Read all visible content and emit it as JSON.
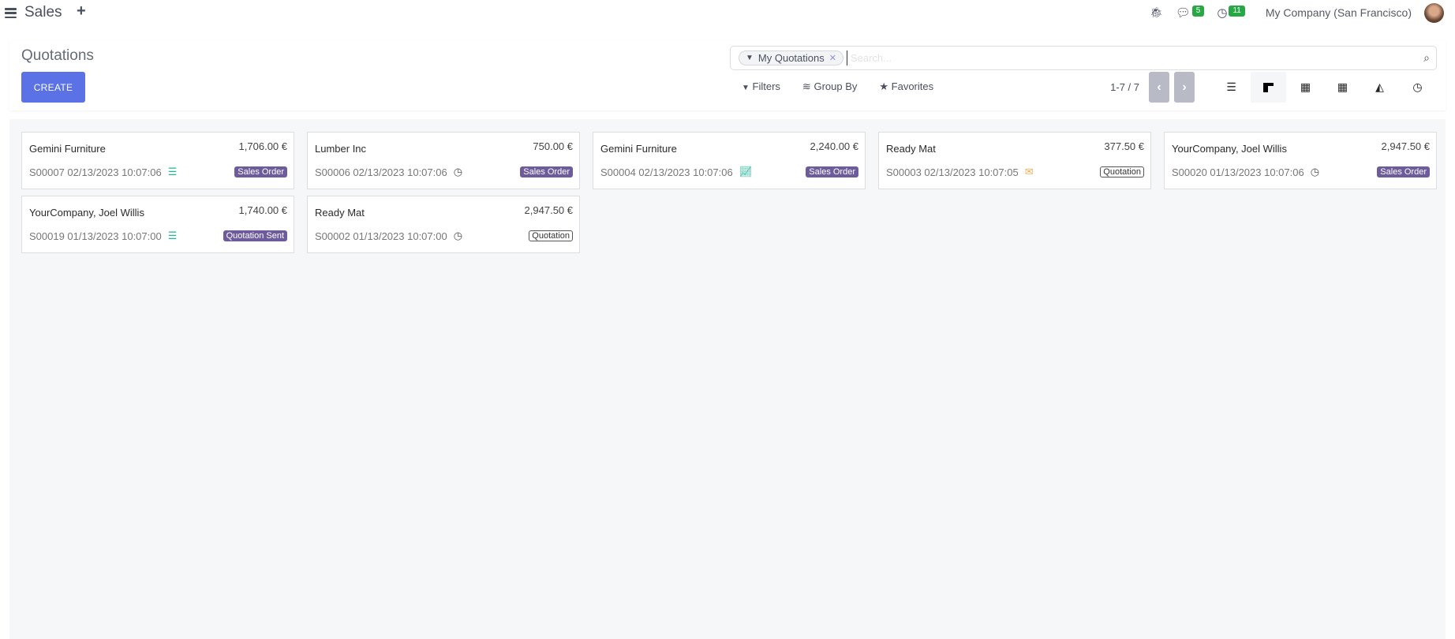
{
  "topbar": {
    "app_title": "Sales",
    "messages_count": "5",
    "activities_count": "11",
    "company": "My Company (San Francisco)"
  },
  "control_panel": {
    "title": "Quotations",
    "create_label": "CREATE",
    "search": {
      "facet": "My Quotations",
      "placeholder": "Search..."
    },
    "filters_label": "Filters",
    "group_by_label": "Group By",
    "favorites_label": "Favorites",
    "pager": "1-7 / 7",
    "views": [
      {
        "name": "list",
        "active": false
      },
      {
        "name": "kanban",
        "active": true
      },
      {
        "name": "calendar",
        "active": false
      },
      {
        "name": "pivot",
        "active": false
      },
      {
        "name": "graph",
        "active": false
      },
      {
        "name": "activity",
        "active": false
      }
    ]
  },
  "cards": [
    {
      "customer": "Gemini Furniture",
      "amount": "1,706.00 €",
      "ref": "S00007 02/13/2023 10:07:06",
      "activity": "list-icon",
      "status": "Sales Order",
      "status_style": "filled"
    },
    {
      "customer": "Lumber Inc",
      "amount": "750.00 €",
      "ref": "S00006 02/13/2023 10:07:06",
      "activity": "clock-icon",
      "status": "Sales Order",
      "status_style": "filled"
    },
    {
      "customer": "Gemini Furniture",
      "amount": "2,240.00 €",
      "ref": "S00004 02/13/2023 10:07:06",
      "activity": "chart-line-icon",
      "status": "Sales Order",
      "status_style": "filled"
    },
    {
      "customer": "Ready Mat",
      "amount": "377.50 €",
      "ref": "S00003 02/13/2023 10:07:05",
      "activity": "envelope-icon",
      "status": "Quotation",
      "status_style": "outline"
    },
    {
      "customer": "YourCompany, Joel Willis",
      "amount": "2,947.50 €",
      "ref": "S00020 01/13/2023 10:07:06",
      "activity": "clock-icon",
      "status": "Sales Order",
      "status_style": "filled"
    },
    {
      "customer": "YourCompany, Joel Willis",
      "amount": "1,740.00 €",
      "ref": "S00019 01/13/2023 10:07:00",
      "activity": "list-icon",
      "status": "Quotation Sent",
      "status_style": "filled"
    },
    {
      "customer": "Ready Mat",
      "amount": "2,947.50 €",
      "ref": "S00002 01/13/2023 10:07:00",
      "activity": "clock-icon",
      "status": "Quotation",
      "status_style": "outline"
    }
  ],
  "colors": {
    "primary": "#5a72e5",
    "status_badge": "#6d5b9c",
    "activity_green": "#21b799",
    "activity_orange": "#f0ad4e",
    "notification_badge": "#28a745"
  }
}
